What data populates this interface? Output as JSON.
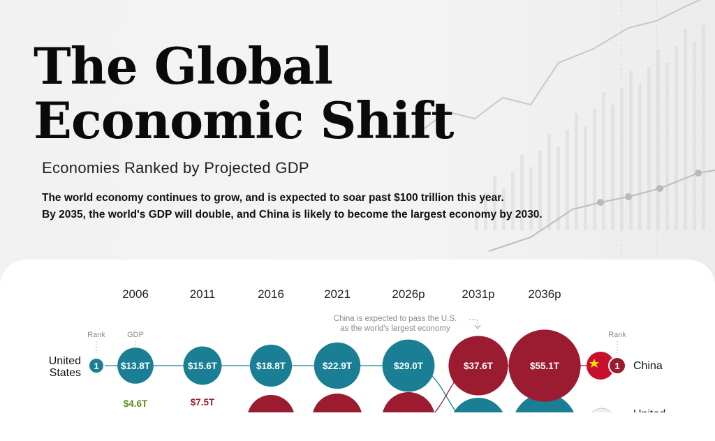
{
  "header": {
    "title_line1": "The Global",
    "title_line2": "Economic Shift",
    "subtitle": "Economies Ranked by Projected GDP",
    "intro_line1": "The world economy continues to grow, and is expected to soar past $100 trillion this year.",
    "intro_line2": "By 2035, the world's GDP will double, and China is likely to become the largest economy by 2030."
  },
  "colors": {
    "us_teal": "#1a7f94",
    "china_red": "#9b1b30",
    "connector": "#1a7f94",
    "growth_green": "#5a8a1a",
    "growth_red": "#9b1b30",
    "muted_text": "#8a8a8a"
  },
  "chart_data": {
    "type": "bubble-rank",
    "years": [
      "2006",
      "2011",
      "2016",
      "2021",
      "2026p",
      "2031p",
      "2036p"
    ],
    "rank_label": "Rank",
    "gdp_label": "GDP",
    "annotation": "China is expected to pass the U.S.\nas the world's largest economy",
    "series": [
      {
        "name": "United States",
        "rank_start": "1",
        "color": "#1a7f94",
        "values": [
          13.8,
          15.6,
          18.8,
          22.9,
          29.0,
          null,
          null
        ],
        "labels": [
          "$13.8T",
          "$15.6T",
          "$18.8T",
          "$22.9T",
          "$29.0T",
          "",
          ""
        ]
      },
      {
        "name": "China",
        "rank_end": "1",
        "color": "#9b1b30",
        "values": [
          4.6,
          7.5,
          null,
          null,
          null,
          37.6,
          55.1
        ],
        "labels": [
          "$4.6T",
          "$7.5T",
          "",
          "",
          "",
          "$37.6T",
          "$55.1T"
        ]
      }
    ],
    "left_label_line1": "United",
    "left_label_line2": "States",
    "right_label": "China",
    "right_label_partial": "United"
  }
}
